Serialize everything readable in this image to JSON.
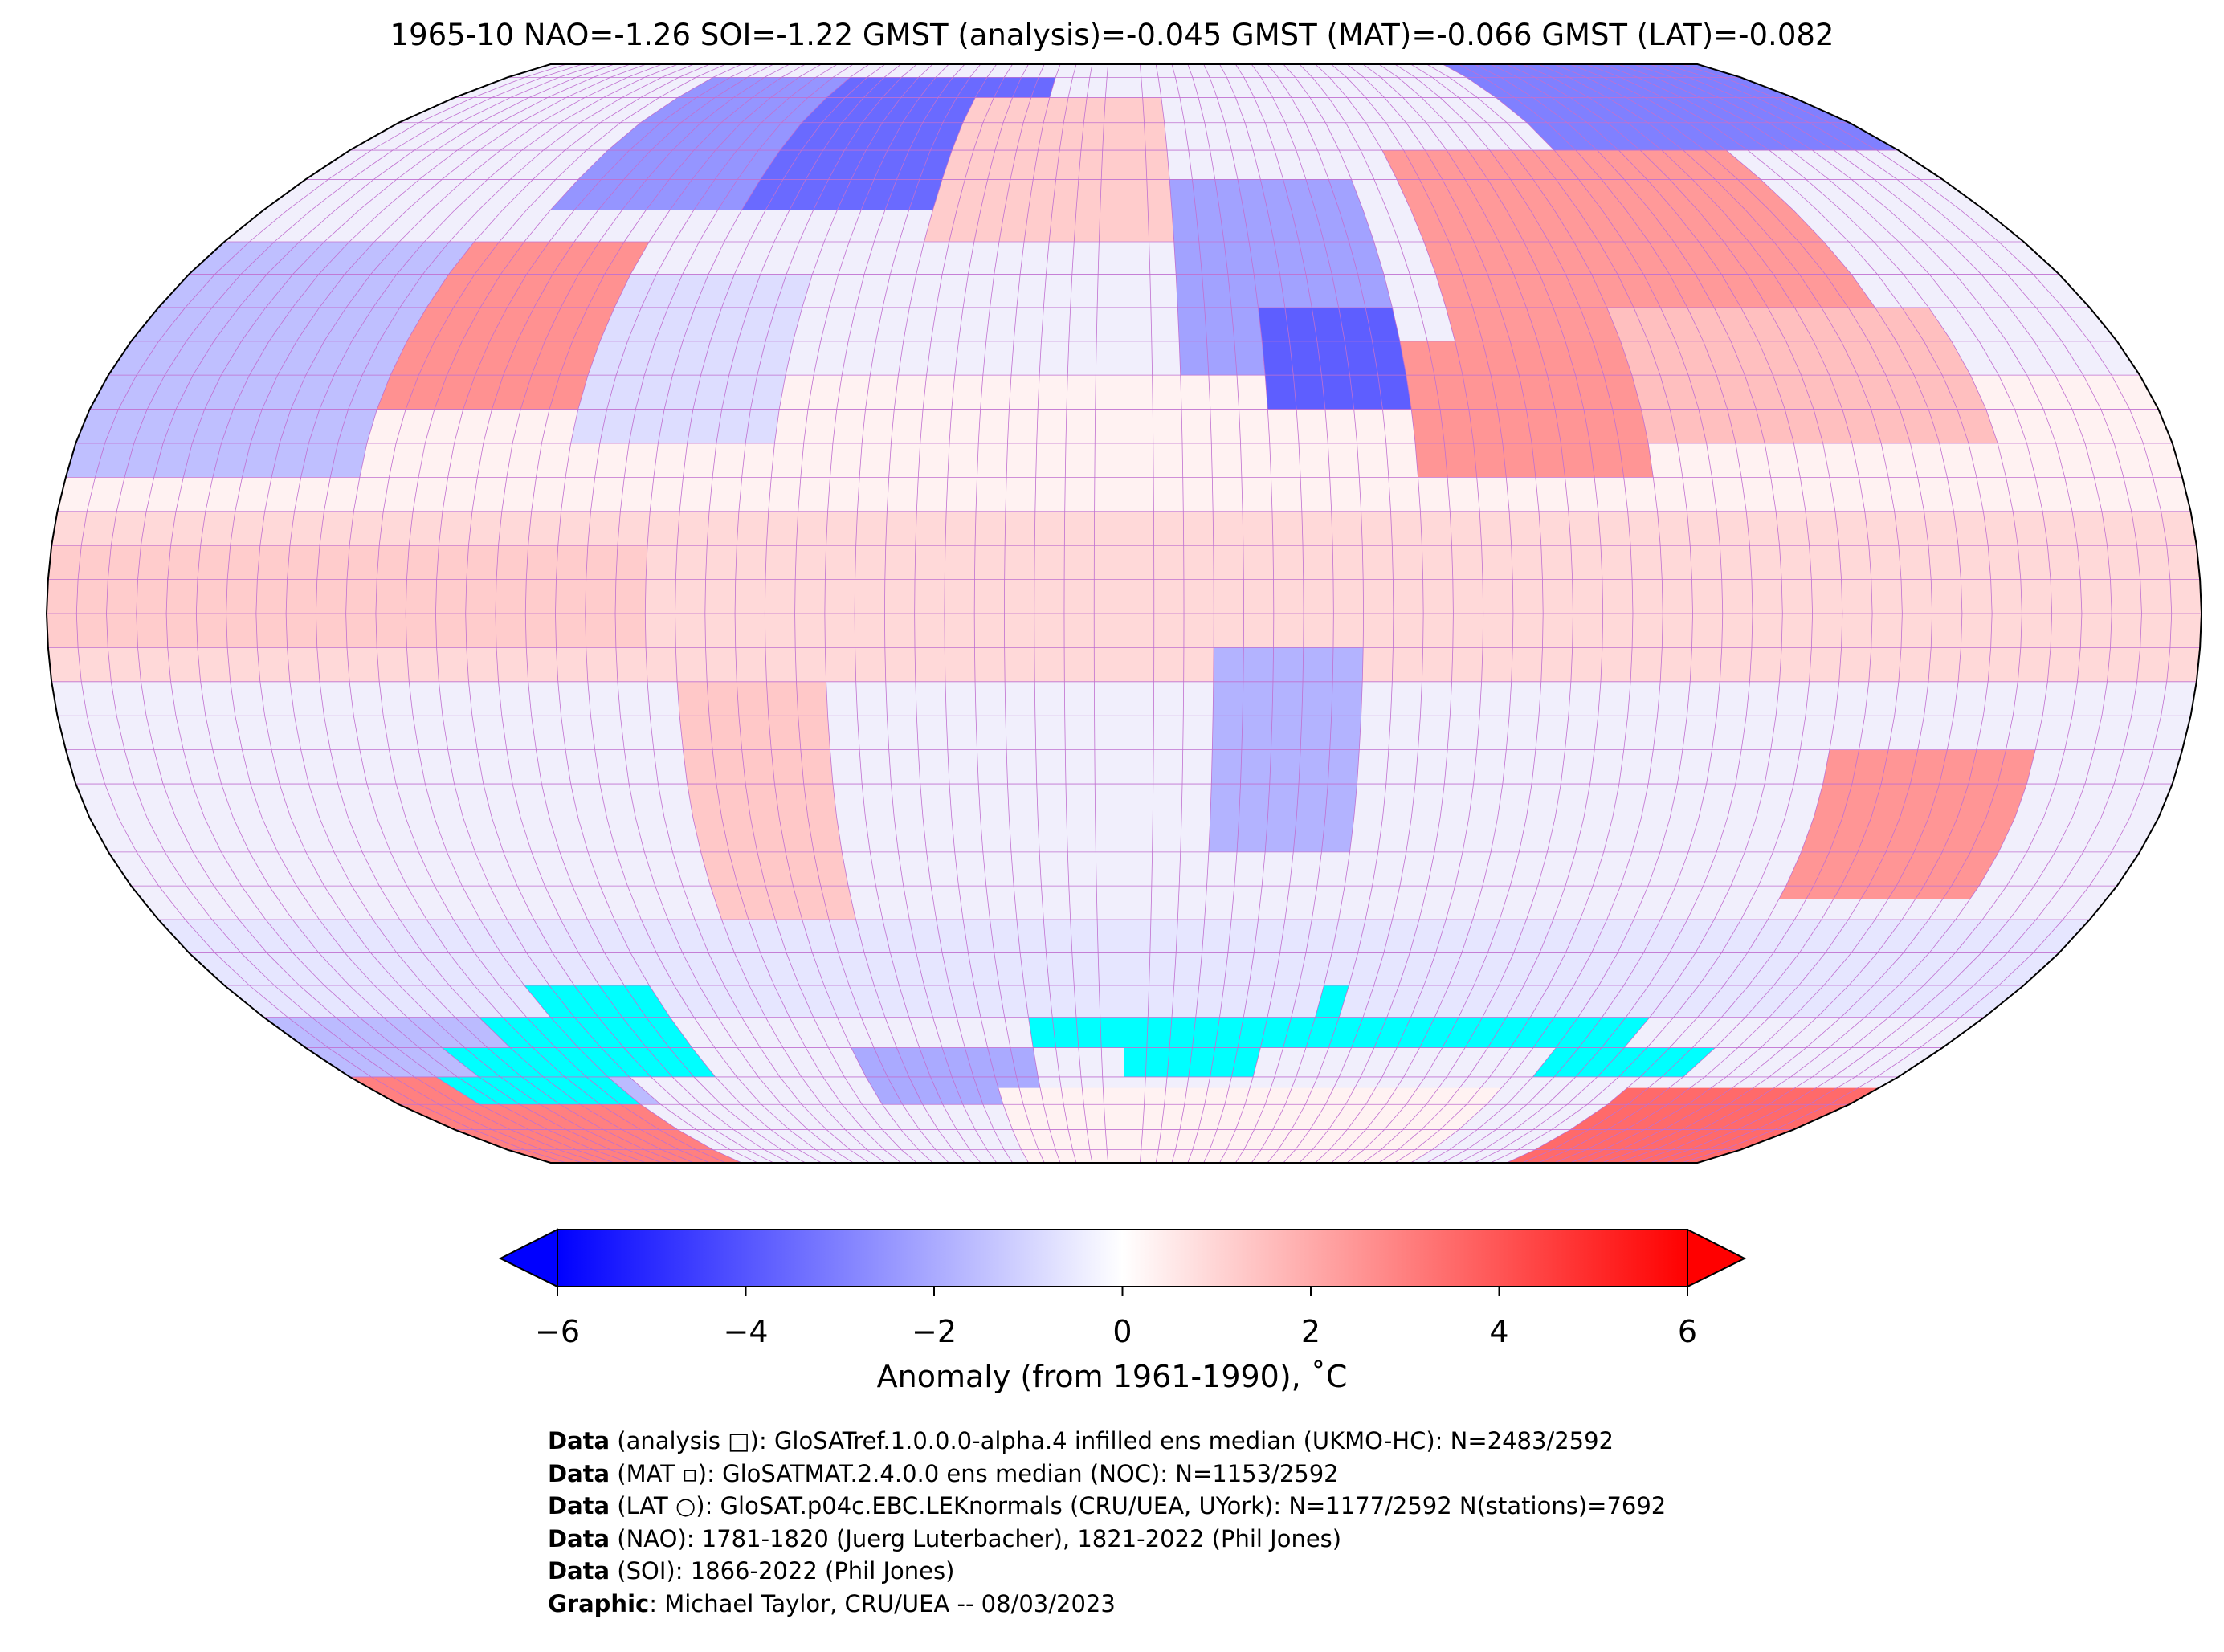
{
  "title": "1965-10 NAO=-1.26 SOI=-1.22 GMST (analysis)=-0.045 GMST (MAT)=-0.066 GMST (LAT)=-0.082",
  "colorbar": {
    "label": "Anomaly (from 1961-1990), ˚C",
    "ticks": [
      "−6",
      "−4",
      "−2",
      "0",
      "2",
      "4",
      "6"
    ],
    "range": [
      -6,
      6
    ],
    "colors": {
      "min": "#0000ff",
      "mid": "#ffffff",
      "max": "#ff0000"
    },
    "extend": "both"
  },
  "map": {
    "projection": "Robinson",
    "missing_color": "#00ffff",
    "grid_color": "#c070d0"
  },
  "footer": [
    {
      "bold": "Data",
      "text": " (analysis □): GloSATref.1.0.0.0-alpha.4 infilled ens median (UKMO-HC): N=2483/2592"
    },
    {
      "bold": "Data",
      "text": " (MAT ▫): GloSATMAT.2.4.0.0 ens median (NOC): N=1153/2592"
    },
    {
      "bold": "Data",
      "text": " (LAT ○): GloSAT.p04c.EBC.LEKnormals (CRU/UEA, UYork): N=1177/2592 N(stations)=7692"
    },
    {
      "bold": "Data",
      "text": " (NAO): 1781-1820 (Juerg Luterbacher), 1821-2022 (Phil Jones)"
    },
    {
      "bold": "Data",
      "text": " (SOI): 1866-2022 (Phil Jones)"
    },
    {
      "bold": "Graphic",
      "text": ": Michael Taylor, CRU/UEA -- 08/03/2023"
    }
  ]
}
